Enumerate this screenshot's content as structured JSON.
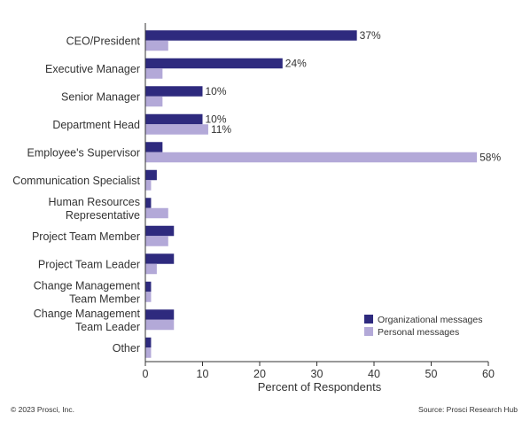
{
  "chart_data": {
    "type": "bar",
    "orientation": "horizontal",
    "categories": [
      [
        "CEO/President"
      ],
      [
        "Executive Manager"
      ],
      [
        "Senior Manager"
      ],
      [
        "Department Head"
      ],
      [
        "Employee's Supervisor"
      ],
      [
        "Communication Specialist"
      ],
      [
        "Human Resources",
        "Representative"
      ],
      [
        "Project Team Member"
      ],
      [
        "Project Team Leader"
      ],
      [
        "Change Management",
        "Team Member"
      ],
      [
        "Change Management",
        "Team Leader"
      ],
      [
        "Other"
      ]
    ],
    "series": [
      {
        "name": "Organizational messages",
        "color": "#2e2a7e",
        "values": [
          37,
          24,
          10,
          10,
          3,
          2,
          1,
          5,
          5,
          1,
          5,
          1
        ],
        "labels": [
          "37%",
          "24%",
          "10%",
          "10%",
          "",
          "",
          "",
          "",
          "",
          "",
          "",
          ""
        ]
      },
      {
        "name": "Personal messages",
        "color": "#b3a9d8",
        "values": [
          4,
          3,
          3,
          11,
          58,
          1,
          4,
          4,
          2,
          1,
          5,
          1
        ],
        "labels": [
          "",
          "",
          "",
          "11%",
          "58%",
          "",
          "",
          "",
          "",
          "",
          "",
          ""
        ]
      }
    ],
    "xlabel": "Percent of Respondents",
    "xlim": [
      0,
      60
    ],
    "xticks": [
      0,
      10,
      20,
      30,
      40,
      50,
      60
    ],
    "grid": false,
    "legend_position": "bottom-right"
  },
  "footer": {
    "copyright": "© 2023 Prosci, Inc.",
    "source": "Source: Prosci Research Hub"
  }
}
